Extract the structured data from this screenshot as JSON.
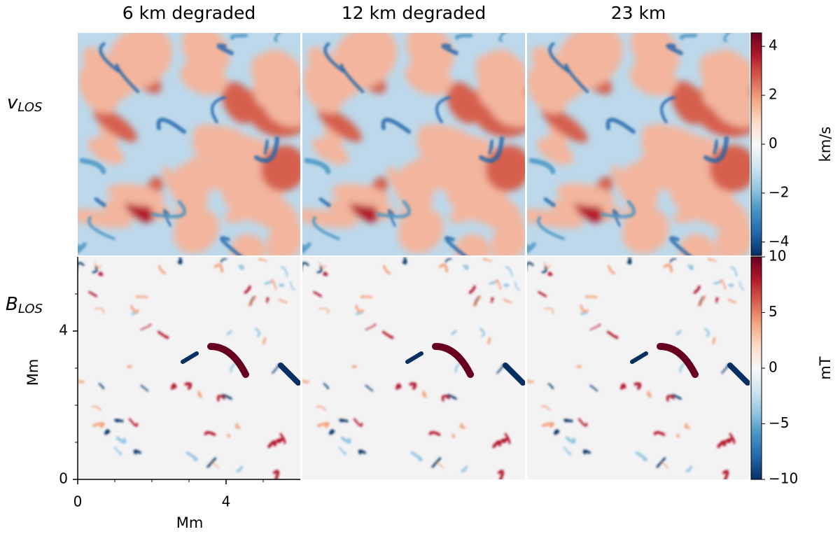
{
  "chart_data": {
    "type": "heatmap",
    "columns": [
      "6 km degraded",
      "12 km degraded",
      "23 km"
    ],
    "rows": [
      {
        "symbol": "v",
        "subscript": "LOS",
        "colorbar_label": "km/s",
        "clim": [
          -4.55,
          4.55
        ],
        "cticks": [
          {
            "value": 4,
            "label": "4"
          },
          {
            "value": 2,
            "label": "2"
          },
          {
            "value": 0,
            "label": "0"
          },
          {
            "value": -2,
            "label": "−2"
          },
          {
            "value": -4,
            "label": "−4"
          }
        ]
      },
      {
        "symbol": "B",
        "subscript": "LOS",
        "colorbar_label": "mT",
        "clim": [
          -10,
          10
        ],
        "cticks": [
          {
            "value": 10,
            "label": "10"
          },
          {
            "value": 5,
            "label": "5"
          },
          {
            "value": 0,
            "label": "0"
          },
          {
            "value": -5,
            "label": "−5"
          },
          {
            "value": -10,
            "label": "−10"
          }
        ]
      }
    ],
    "colormap": [
      "#053061",
      "#2166ac",
      "#4393c3",
      "#92c5de",
      "#d1e5f0",
      "#f7f7f7",
      "#fddbc7",
      "#f4a582",
      "#d6604d",
      "#b2182b",
      "#67001f"
    ],
    "xlabel": "Mm",
    "ylabel": "Mm",
    "xlim": [
      0,
      6
    ],
    "xticks": [
      0,
      4
    ],
    "xminorticks": [
      1,
      2,
      3,
      5
    ],
    "ylim": [
      0,
      6
    ],
    "yticks": [
      0,
      4
    ],
    "yminorticks": [
      1,
      2,
      3,
      5
    ]
  }
}
